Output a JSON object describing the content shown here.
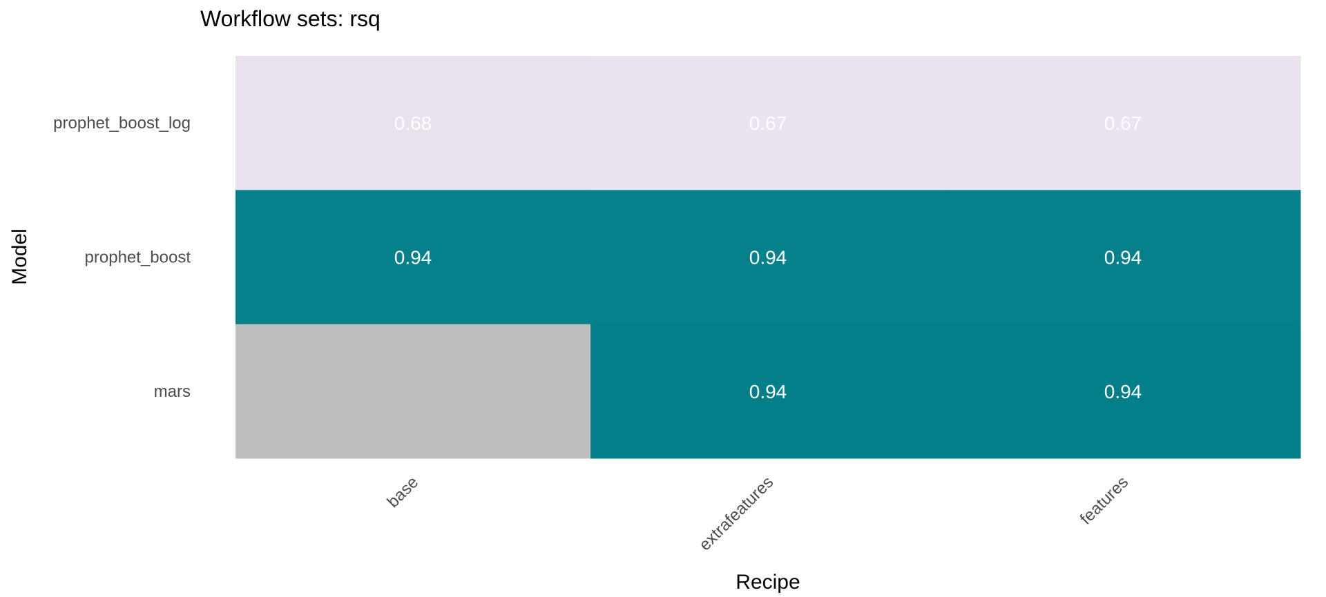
{
  "chart_data": {
    "type": "heatmap",
    "title": "Workflow sets: rsq",
    "xlabel": "Recipe",
    "ylabel": "Model",
    "x_categories": [
      "base",
      "extrafeatures",
      "features"
    ],
    "y_categories": [
      "prophet_boost_log",
      "prophet_boost",
      "mars"
    ],
    "grid": false,
    "legend": "none",
    "cells": [
      {
        "model": "prophet_boost_log",
        "recipe": "base",
        "value": 0.68,
        "label": "0.68",
        "color": "#e9e2ee"
      },
      {
        "model": "prophet_boost_log",
        "recipe": "extrafeatures",
        "value": 0.67,
        "label": "0.67",
        "color": "#ebe3f0"
      },
      {
        "model": "prophet_boost_log",
        "recipe": "features",
        "value": 0.67,
        "label": "0.67",
        "color": "#ebe3f0"
      },
      {
        "model": "prophet_boost",
        "recipe": "base",
        "value": 0.94,
        "label": "0.94",
        "color": "#06808a"
      },
      {
        "model": "prophet_boost",
        "recipe": "extrafeatures",
        "value": 0.94,
        "label": "0.94",
        "color": "#06808a"
      },
      {
        "model": "prophet_boost",
        "recipe": "features",
        "value": 0.94,
        "label": "0.94",
        "color": "#06808a"
      },
      {
        "model": "mars",
        "recipe": "base",
        "value": null,
        "label": "",
        "color": "#bebebe"
      },
      {
        "model": "mars",
        "recipe": "extrafeatures",
        "value": 0.94,
        "label": "0.94",
        "color": "#037f89"
      },
      {
        "model": "mars",
        "recipe": "features",
        "value": 0.94,
        "label": "0.94",
        "color": "#037f89"
      }
    ]
  }
}
